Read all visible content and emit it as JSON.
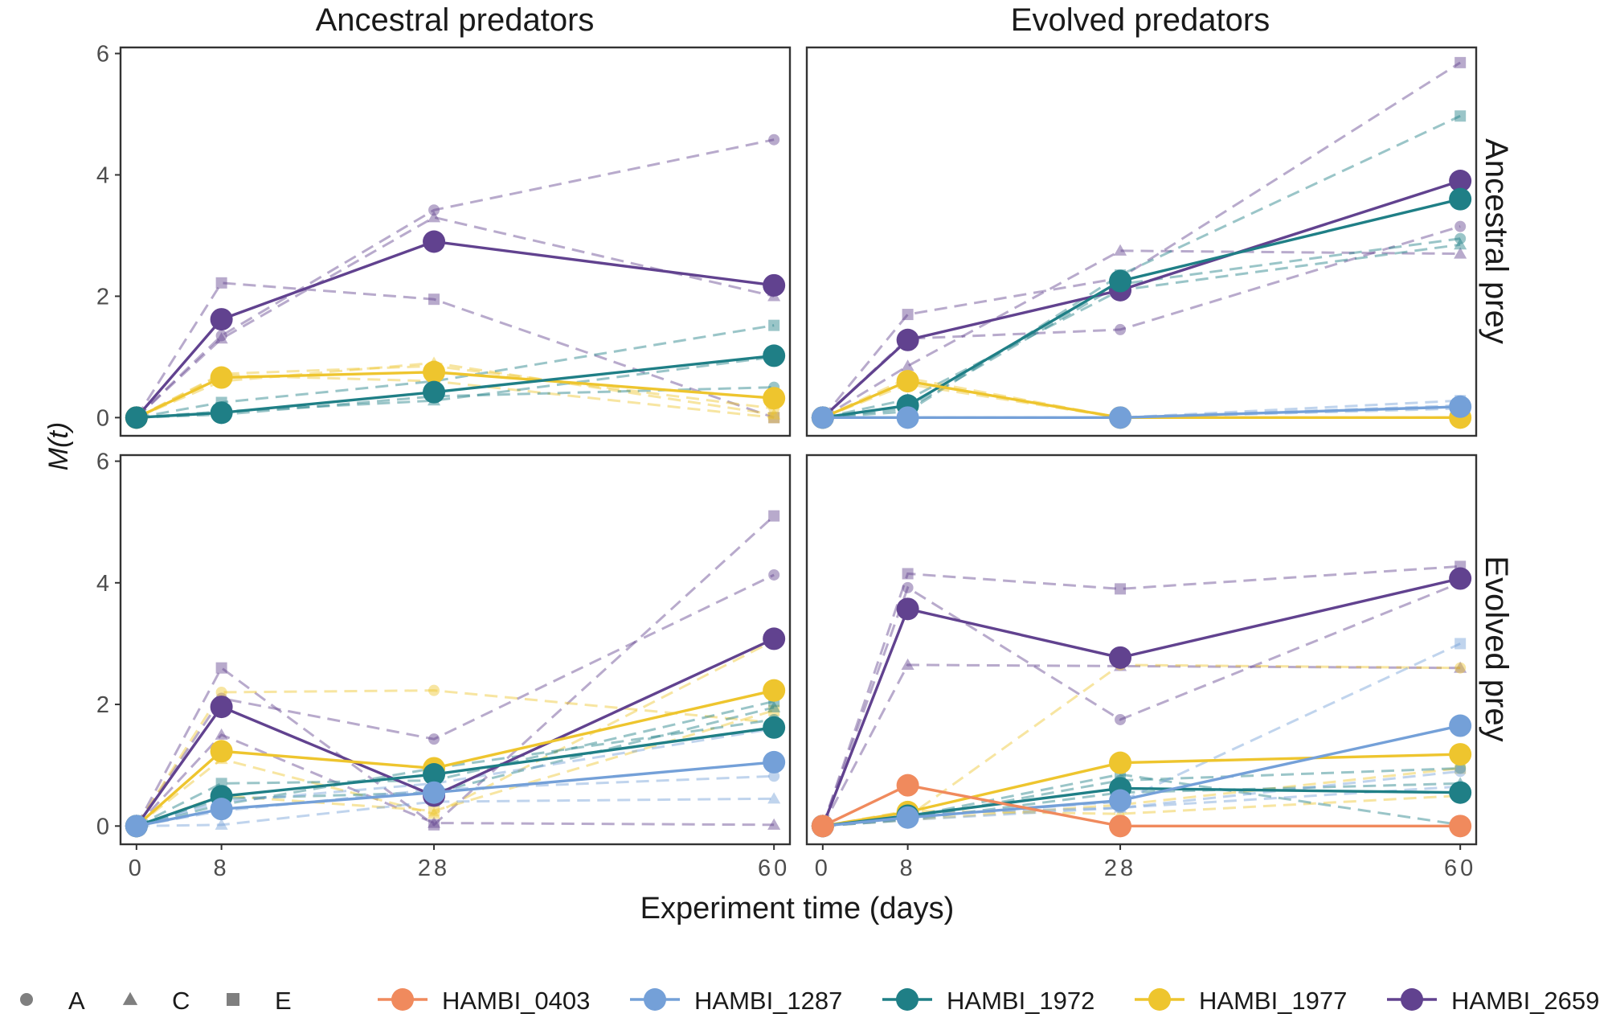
{
  "figure": {
    "xlabel": "Experiment time (days)",
    "ylabel": "M(t)",
    "col_strips": [
      "Ancestral predators",
      "Evolved predators"
    ],
    "row_strips": [
      "Ancestral prey",
      "Evolved prey"
    ]
  },
  "legend": {
    "shapes": [
      {
        "label": "A",
        "shape": "circle"
      },
      {
        "label": "C",
        "shape": "triangle"
      },
      {
        "label": "E",
        "shape": "square"
      }
    ],
    "species": [
      {
        "label": "HAMBI_0403",
        "color": "#F08A5D"
      },
      {
        "label": "HAMBI_1287",
        "color": "#74A0D8"
      },
      {
        "label": "HAMBI_1972",
        "color": "#1F7F86"
      },
      {
        "label": "HAMBI_1977",
        "color": "#EEC52E"
      },
      {
        "label": "HAMBI_2659",
        "color": "#61428F"
      }
    ]
  },
  "chart_data": {
    "type": "line",
    "x_ticks": [
      0,
      8,
      28,
      60
    ],
    "y_ticks": [
      0,
      2,
      4,
      6
    ],
    "xlim": [
      -1.5,
      61.5
    ],
    "ylim": [
      -0.3,
      6.1
    ],
    "grid": false,
    "legend_position": "bottom",
    "panels": [
      {
        "col": "Ancestral predators",
        "row": "Ancestral prey",
        "series": [
          {
            "species": "HAMBI_2659",
            "mean": [
              0,
              1.62,
              2.9,
              2.18
            ],
            "replicates": {
              "A": [
                0,
                1.35,
                3.42,
                4.58
              ],
              "C": [
                0,
                1.3,
                3.3,
                2.0
              ],
              "E": [
                0,
                2.22,
                1.95,
                0.0
              ]
            }
          },
          {
            "species": "HAMBI_1977",
            "mean": [
              0,
              0.66,
              0.75,
              0.32
            ],
            "replicates": {
              "A": [
                0,
                0.72,
                0.85,
                0.15
              ],
              "C": [
                0,
                0.6,
                0.9,
                0.05
              ],
              "E": [
                0,
                0.7,
                0.6,
                0.0
              ]
            }
          },
          {
            "species": "HAMBI_1972",
            "mean": [
              0,
              0.08,
              0.42,
              1.02
            ],
            "replicates": {
              "A": [
                0,
                0.05,
                0.35,
                0.5
              ],
              "C": [
                0,
                0.1,
                0.28,
                1.0
              ],
              "E": [
                0,
                0.25,
                0.6,
                1.52
              ]
            }
          }
        ]
      },
      {
        "col": "Evolved predators",
        "row": "Ancestral prey",
        "series": [
          {
            "species": "HAMBI_2659",
            "mean": [
              0,
              1.28,
              2.1,
              3.9
            ],
            "replicates": {
              "A": [
                0,
                1.3,
                1.45,
                3.15
              ],
              "C": [
                0,
                0.85,
                2.75,
                2.7
              ],
              "E": [
                0,
                1.7,
                2.3,
                5.85
              ]
            }
          },
          {
            "species": "HAMBI_1972",
            "mean": [
              0,
              0.2,
              2.25,
              3.6
            ],
            "replicates": {
              "A": [
                0,
                0.15,
                2.2,
                2.95
              ],
              "C": [
                0,
                0.3,
                2.1,
                2.85
              ],
              "E": [
                0,
                0.1,
                2.35,
                4.97
              ]
            }
          },
          {
            "species": "HAMBI_1977",
            "mean": [
              0,
              0.6,
              0,
              0
            ],
            "replicates": {
              "A": [
                0,
                0.55,
                0,
                0
              ],
              "C": [
                0,
                0.65,
                0,
                0
              ],
              "E": [
                0,
                0.6,
                0,
                0
              ]
            }
          },
          {
            "species": "HAMBI_1287",
            "mean": [
              0,
              0,
              0,
              0.18
            ],
            "replicates": {
              "A": [
                0,
                0,
                0,
                0.15
              ],
              "C": [
                0,
                0,
                0,
                0.2
              ],
              "E": [
                0,
                0,
                0,
                0.28
              ]
            }
          }
        ]
      },
      {
        "col": "Ancestral predators",
        "row": "Evolved prey",
        "series": [
          {
            "species": "HAMBI_2659",
            "mean": [
              0,
              1.96,
              0.5,
              3.08
            ],
            "replicates": {
              "A": [
                0,
                2.1,
                1.43,
                4.13
              ],
              "C": [
                0,
                1.5,
                0.05,
                0.02
              ],
              "E": [
                0,
                2.6,
                0.02,
                5.1
              ]
            }
          },
          {
            "species": "HAMBI_1977",
            "mean": [
              0,
              1.23,
              0.95,
              2.23
            ],
            "replicates": {
              "A": [
                0,
                2.2,
                2.23,
                1.7
              ],
              "C": [
                0,
                1.1,
                0.2,
                3.05
              ],
              "E": [
                0,
                0.5,
                0.25,
                1.9
              ]
            }
          },
          {
            "species": "HAMBI_1972",
            "mean": [
              0,
              0.49,
              0.85,
              1.62
            ],
            "replicates": {
              "A": [
                0,
                0.35,
                0.95,
                1.75
              ],
              "C": [
                0,
                0.45,
                0.55,
                1.95
              ],
              "E": [
                0,
                0.7,
                0.75,
                2.05
              ]
            }
          },
          {
            "species": "HAMBI_1287",
            "mean": [
              0,
              0.28,
              0.55,
              1.05
            ],
            "replicates": {
              "A": [
                0,
                0.25,
                0.6,
                0.82
              ],
              "C": [
                0,
                0.02,
                0.4,
                0.45
              ],
              "E": [
                0,
                0.4,
                0.7,
                1.6
              ]
            }
          }
        ]
      },
      {
        "col": "Evolved predators",
        "row": "Evolved prey",
        "series": [
          {
            "species": "HAMBI_2659",
            "mean": [
              0,
              3.57,
              2.77,
              4.07
            ],
            "replicates": {
              "A": [
                0,
                3.92,
                1.75,
                4.0
              ],
              "C": [
                0,
                2.65,
                2.63,
                2.6
              ],
              "E": [
                0,
                4.15,
                3.9,
                4.27
              ]
            }
          },
          {
            "species": "HAMBI_1977",
            "mean": [
              0,
              0.23,
              1.04,
              1.18
            ],
            "replicates": {
              "A": [
                0,
                0.15,
                2.65,
                2.6
              ],
              "C": [
                0,
                0.25,
                0.2,
                0.5
              ],
              "E": [
                0,
                0.1,
                0.35,
                0.95
              ]
            }
          },
          {
            "species": "HAMBI_1972",
            "mean": [
              0,
              0.17,
              0.62,
              0.55
            ],
            "replicates": {
              "A": [
                0,
                0.12,
                0.75,
                0.95
              ],
              "C": [
                0,
                0.1,
                0.55,
                0.7
              ],
              "E": [
                0,
                0.15,
                0.85,
                0.02
              ]
            }
          },
          {
            "species": "HAMBI_1287",
            "mean": [
              0,
              0.14,
              0.42,
              1.65
            ],
            "replicates": {
              "A": [
                0,
                0.2,
                0.3,
                0.9
              ],
              "C": [
                0,
                0.1,
                0.3,
                0.65
              ],
              "E": [
                0,
                0.15,
                0.4,
                3.0
              ]
            }
          },
          {
            "species": "HAMBI_0403",
            "mean": [
              0,
              0.67,
              0,
              0
            ],
            "replicates": {}
          }
        ]
      }
    ]
  }
}
